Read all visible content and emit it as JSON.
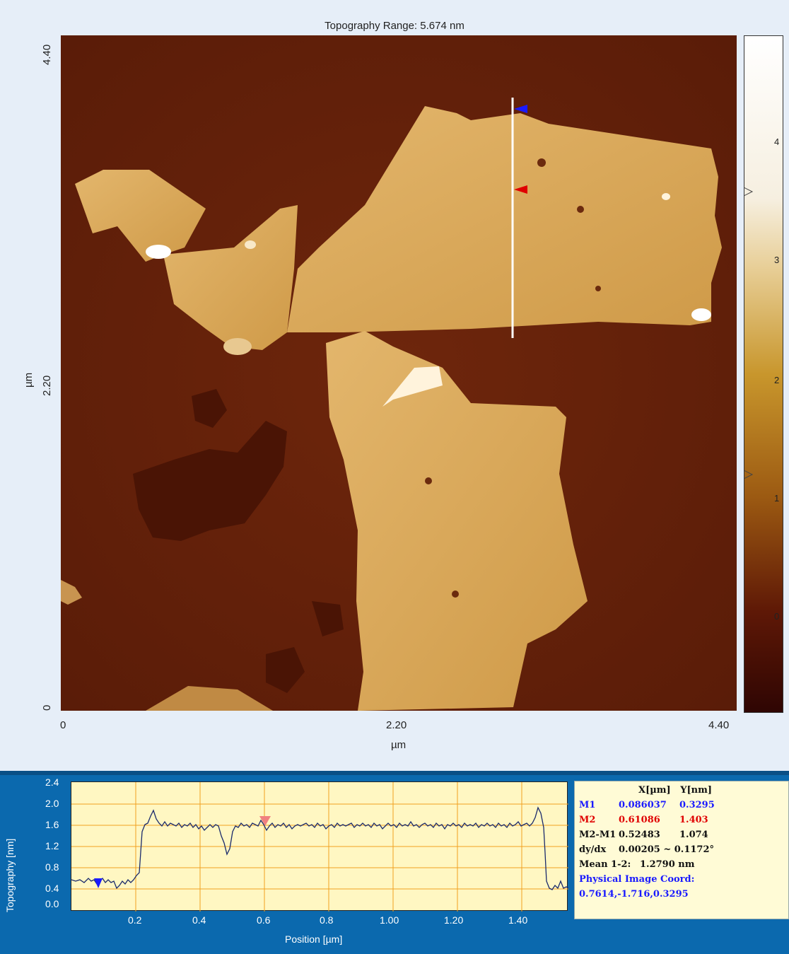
{
  "image": {
    "title": "Topography Range:  5.674 nm",
    "y_axis": {
      "label": "µm",
      "ticks": [
        "4.40",
        "2.20",
        "0"
      ]
    },
    "x_axis": {
      "label": "µm",
      "ticks": [
        "0",
        "2.20",
        "4.40"
      ]
    },
    "colorbar_ticks": [
      "4",
      "3",
      "2",
      "1",
      "0"
    ],
    "colorbar_colors": [
      "#ffffff",
      "#efd9a8",
      "#c89a2c",
      "#9c5a12",
      "#5e1806",
      "#2e0503"
    ],
    "substrate_color": "#6a240b",
    "flake_color": "#d9a85a"
  },
  "profile": {
    "y_axis": {
      "label": "Topography [nm]",
      "ticks": [
        "2.4",
        "2.0",
        "1.6",
        "1.2",
        "0.8",
        "0.4",
        "0.0"
      ]
    },
    "x_axis": {
      "label": "Position [µm]",
      "ticks": [
        "0.2",
        "0.4",
        "0.6",
        "0.8",
        "1.00",
        "1.20",
        "1.40"
      ]
    },
    "background_color": "#fff7c2",
    "grid_color": "#f0a020",
    "marker1_color": "#1a1aff",
    "marker2_color": "#f08080"
  },
  "readout": {
    "header": "X[µm]   Y[nm]",
    "m1": {
      "label": "M1",
      "x": "0.086037",
      "y": "0.3295"
    },
    "m2": {
      "label": "M2",
      "x": "0.61086",
      "y": "1.403"
    },
    "diff": {
      "label": "M2-M1",
      "x": "0.52483",
      "y": "1.074"
    },
    "slope": {
      "label": "dy/dx",
      "value": "0.00205 ~ 0.1172°"
    },
    "mean": {
      "label": "Mean 1-2:",
      "value": "1.2790 nm"
    },
    "phys_label": "Physical Image Coord:",
    "phys_value": "0.7614,-1.716,0.3295"
  }
}
